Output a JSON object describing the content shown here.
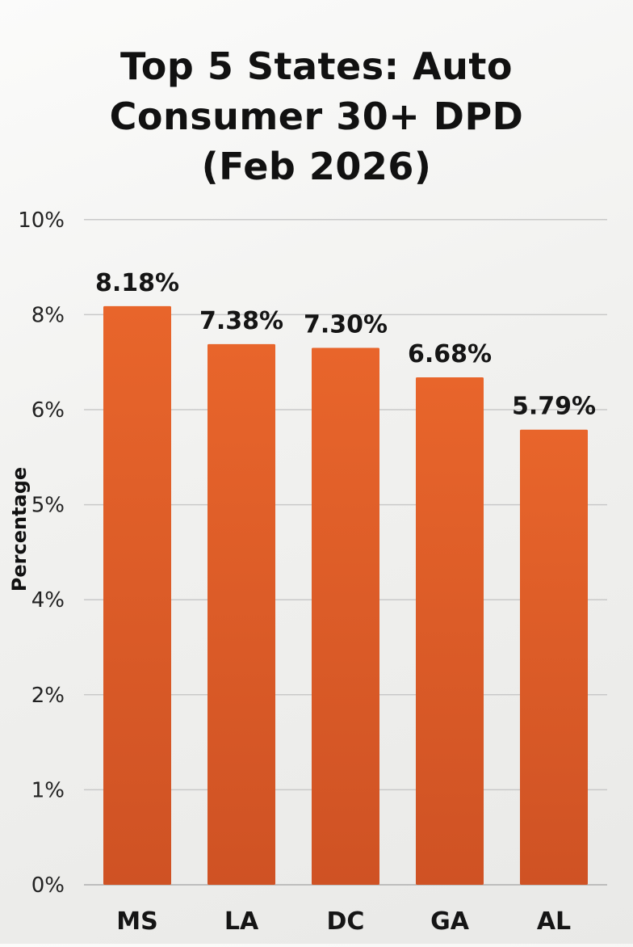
{
  "chart_data": {
    "type": "bar",
    "title_lines": [
      "Top 5 States: Auto",
      "Consumer 30+ DPD",
      "(Feb 2026)"
    ],
    "ylabel": "Percentage",
    "categories": [
      "MS",
      "LA",
      "DC",
      "GA",
      "AL"
    ],
    "values": [
      8.18,
      7.38,
      7.3,
      6.68,
      5.79
    ],
    "data_labels": [
      "8.18%",
      "7.38%",
      "7.30%",
      "6.68%",
      "5.79%"
    ],
    "y_ticks": [
      "0%",
      "1%",
      "2%",
      "4%",
      "5%",
      "6%",
      "8%",
      "10%"
    ],
    "grid": true,
    "bar_color": "#e8652b",
    "bar_color_dark": "#cf5224"
  }
}
